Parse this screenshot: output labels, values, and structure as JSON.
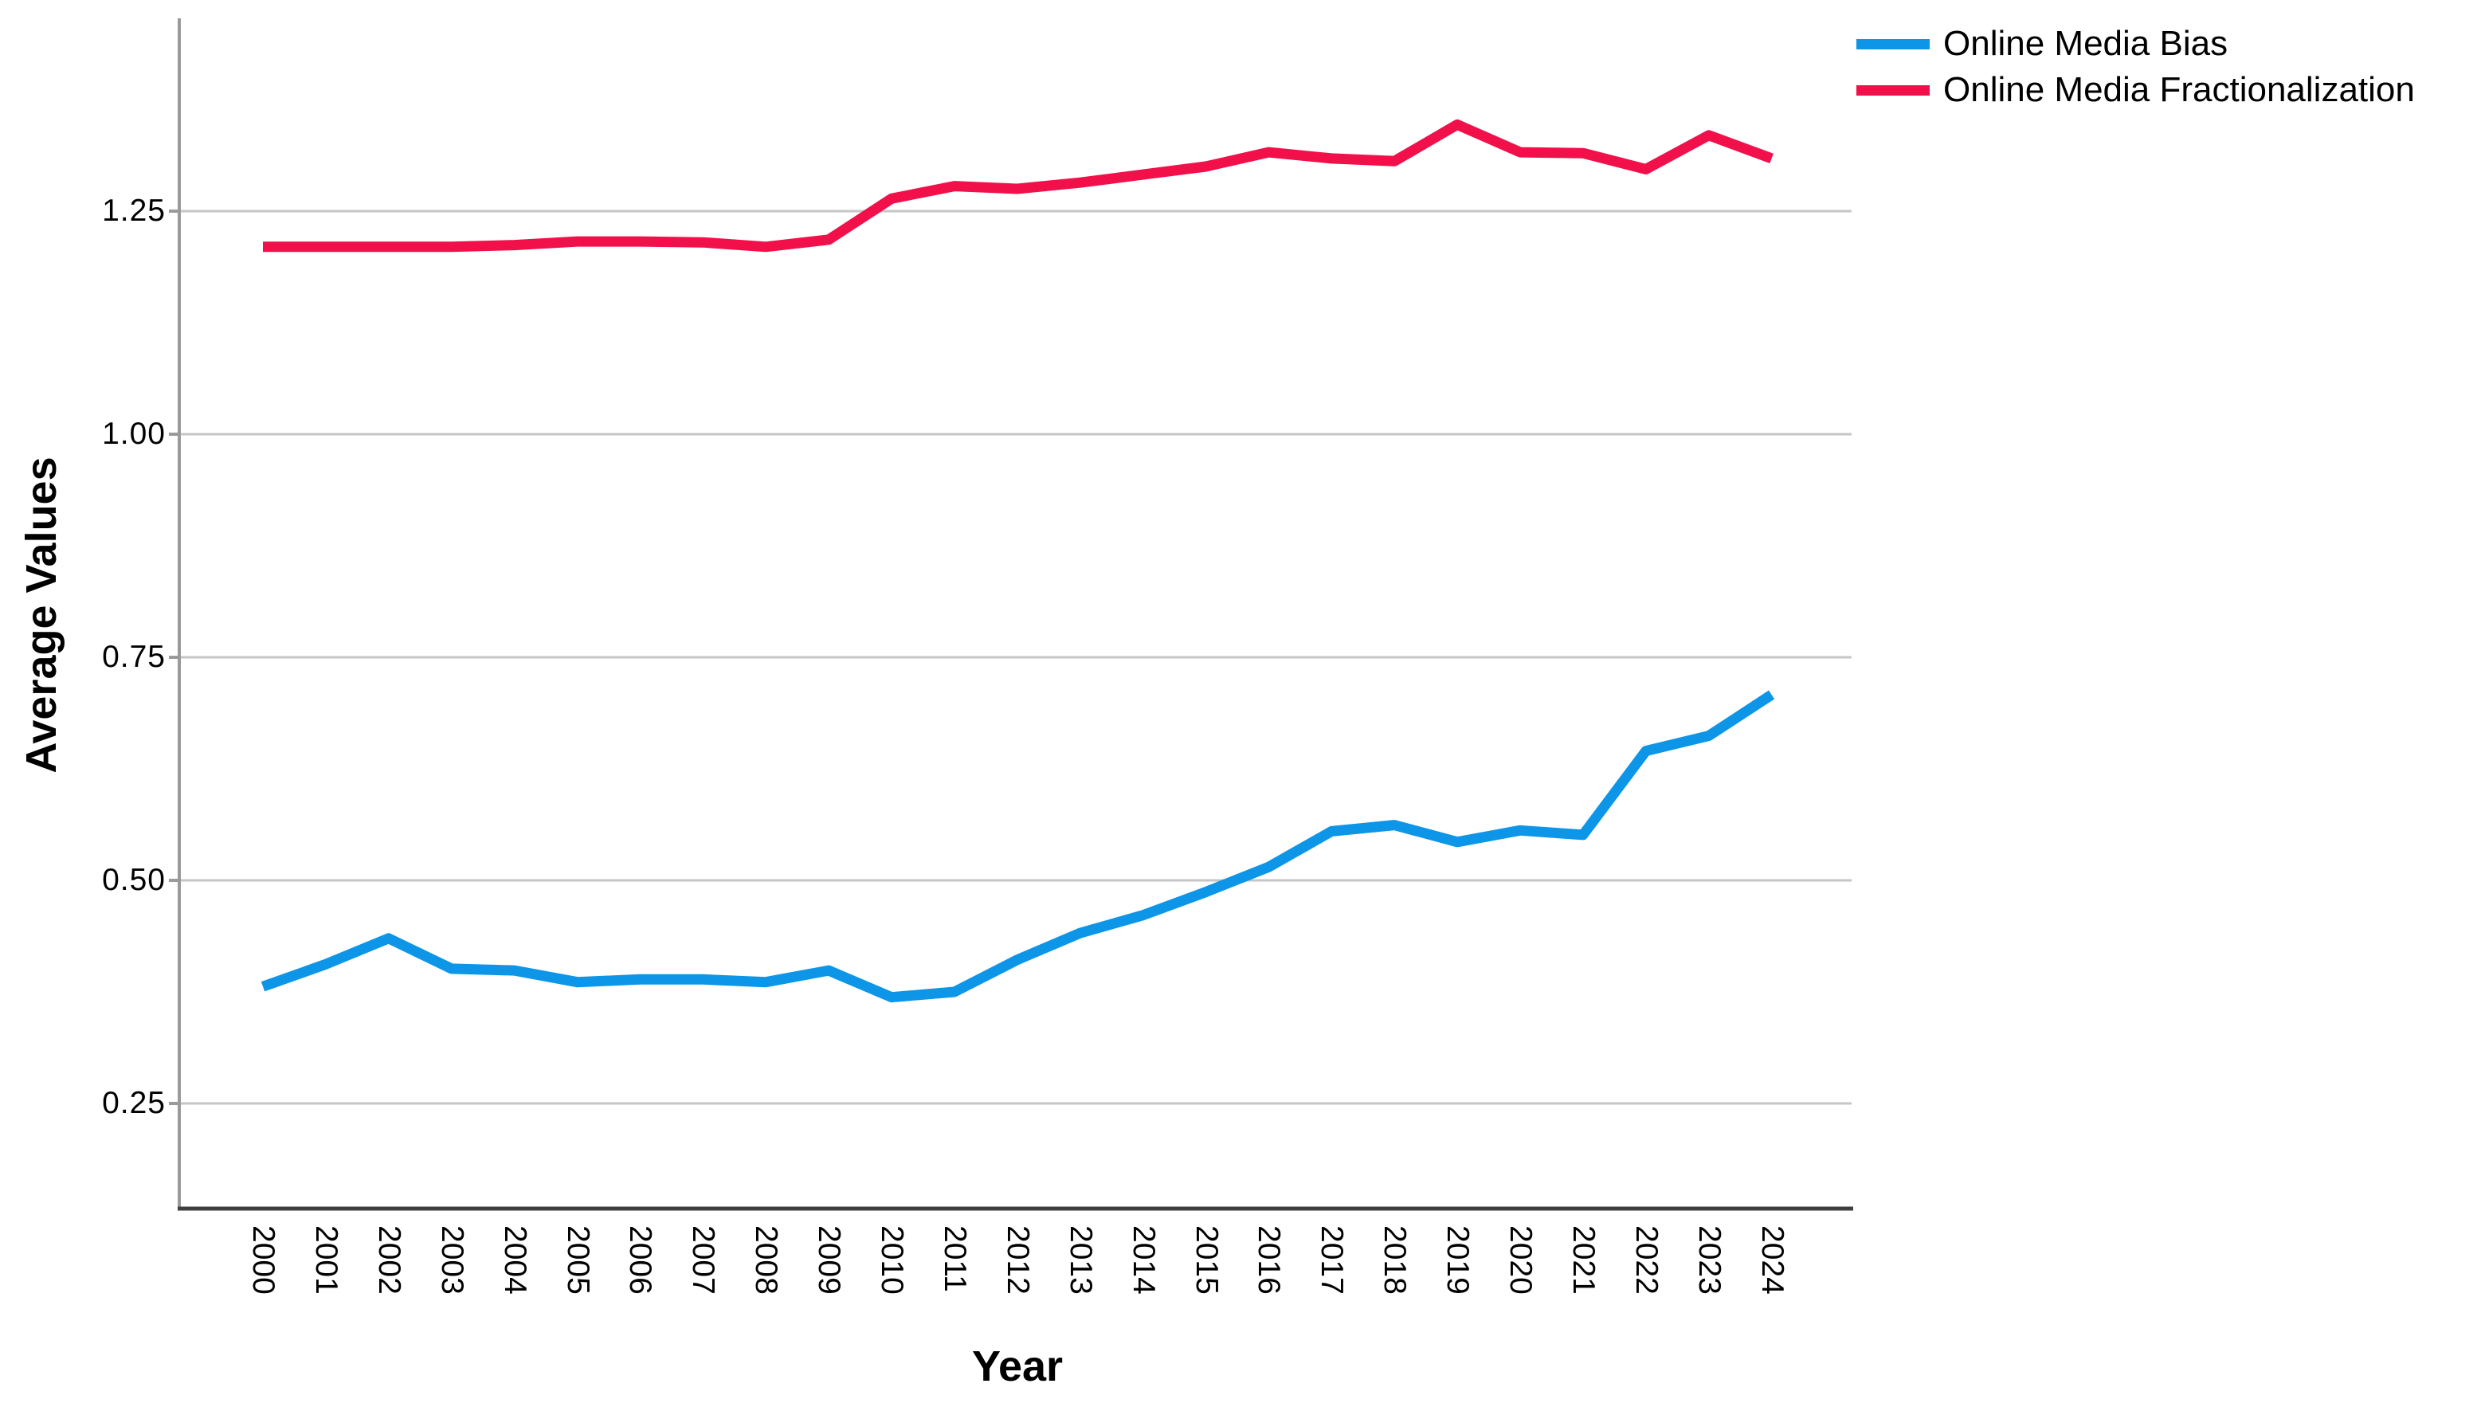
{
  "chart_data": {
    "type": "line",
    "title": "",
    "xlabel": "Year",
    "ylabel": "Average Values",
    "x": [
      2000,
      2001,
      2002,
      2003,
      2004,
      2005,
      2006,
      2007,
      2008,
      2009,
      2010,
      2011,
      2012,
      2013,
      2014,
      2015,
      2016,
      2017,
      2018,
      2019,
      2020,
      2021,
      2022,
      2023,
      2024
    ],
    "series": [
      {
        "name": "Online Media Bias",
        "color": "#0d95e8",
        "values": [
          0.381,
          0.406,
          0.435,
          0.401,
          0.399,
          0.386,
          0.389,
          0.389,
          0.386,
          0.399,
          0.369,
          0.375,
          0.411,
          0.441,
          0.461,
          0.487,
          0.515,
          0.555,
          0.562,
          0.543,
          0.556,
          0.551,
          0.645,
          0.662,
          0.708
        ]
      },
      {
        "name": "Online Media Fractionalization",
        "color": "#f2104a",
        "values": [
          1.21,
          1.21,
          1.21,
          1.21,
          1.212,
          1.216,
          1.216,
          1.215,
          1.21,
          1.218,
          1.264,
          1.278,
          1.275,
          1.282,
          1.291,
          1.3,
          1.316,
          1.309,
          1.306,
          1.347,
          1.316,
          1.315,
          1.297,
          1.335,
          1.309
        ]
      }
    ],
    "yticks": [
      0.25,
      0.5,
      0.75,
      1.0,
      1.25
    ],
    "ytick_labels": [
      "0.25",
      "0.50",
      "0.75",
      "1.00",
      "1.25"
    ],
    "xtick_labels": [
      "2000",
      "2001",
      "2002",
      "2003",
      "2004",
      "2005",
      "2006",
      "2007",
      "2008",
      "2009",
      "2010",
      "2011",
      "2012",
      "2013",
      "2014",
      "2015",
      "2016",
      "2017",
      "2018",
      "2019",
      "2020",
      "2021",
      "2022",
      "2023",
      "2024"
    ],
    "ylim": [
      0.132,
      1.466
    ],
    "grid": true,
    "legend_position": "top-right"
  },
  "colors": {
    "gridline": "#c6c6c6",
    "y_axis_line": "#9a9a9a",
    "x_axis_line": "#3f3f3f",
    "text": "#000000",
    "background": "#ffffff"
  }
}
